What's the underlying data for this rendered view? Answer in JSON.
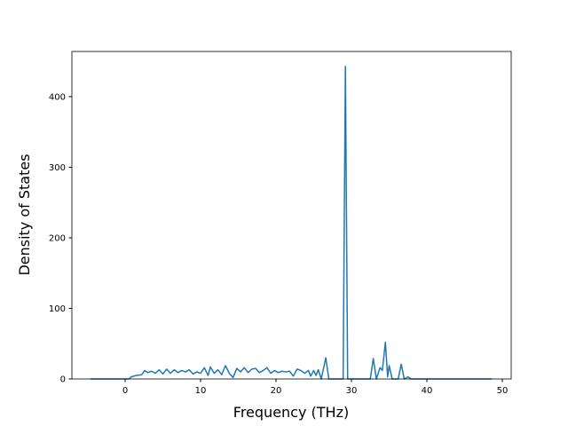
{
  "chart_data": {
    "type": "line",
    "xlabel": "Frequency (THz)",
    "ylabel": "Density of States",
    "color": "#1f77b4",
    "x": [
      -4.6,
      0.5,
      0.8,
      1.5,
      2.2,
      2.6,
      3.0,
      3.5,
      4.0,
      4.5,
      5.0,
      5.5,
      6.0,
      6.5,
      7.0,
      7.5,
      8.0,
      8.5,
      9.0,
      9.5,
      10.0,
      10.5,
      11.0,
      11.3,
      11.8,
      12.3,
      12.8,
      13.3,
      13.8,
      14.3,
      14.8,
      15.3,
      15.8,
      16.3,
      16.8,
      17.3,
      17.8,
      18.3,
      18.8,
      19.3,
      19.8,
      20.3,
      20.8,
      21.3,
      21.8,
      22.3,
      22.8,
      23.3,
      23.8,
      24.3,
      24.6,
      25.0,
      25.3,
      25.6,
      26.0,
      26.6,
      27.0,
      28.9,
      29.2,
      29.5,
      32.5,
      32.9,
      33.3,
      33.8,
      34.1,
      34.5,
      34.8,
      35.0,
      35.4,
      36.2,
      36.6,
      37.0,
      37.5,
      37.9,
      48.6
    ],
    "values": [
      0,
      0,
      3,
      5,
      6,
      12,
      9,
      11,
      8,
      13,
      7,
      14,
      8,
      13,
      9,
      12,
      10,
      13,
      7,
      10,
      8,
      16,
      5,
      17,
      8,
      13,
      6,
      19,
      8,
      2,
      15,
      10,
      16,
      9,
      14,
      15,
      9,
      12,
      16,
      8,
      12,
      9,
      11,
      10,
      11,
      4,
      14,
      12,
      8,
      12,
      4,
      12,
      5,
      13,
      0,
      30,
      0,
      0,
      443,
      0,
      0,
      29,
      0,
      16,
      12,
      52,
      3,
      19,
      0,
      0,
      21,
      0,
      3,
      0,
      0
    ],
    "xlim": [
      -7.06,
      51.18
    ],
    "xticks": [
      0,
      10,
      20,
      30,
      40,
      50
    ],
    "ylim": [
      0,
      464
    ],
    "yticks": [
      0,
      100,
      200,
      300,
      400
    ]
  }
}
